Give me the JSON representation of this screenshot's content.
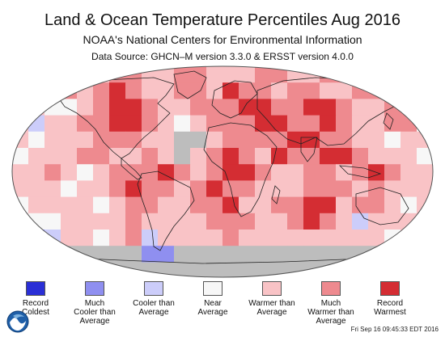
{
  "header": {
    "title": "Land & Ocean Temperature Percentiles Aug 2016",
    "subtitle": "NOAA's National Centers for Environmental Information",
    "source": "Data Source: GHCN–M version 3.3.0 & ERSST version 4.0.0"
  },
  "legend": [
    {
      "label_line1": "Record",
      "label_line2": "Coldest",
      "label_line3": "",
      "color": "#2a2fd6"
    },
    {
      "label_line1": "Much",
      "label_line2": "Cooler than",
      "label_line3": "Average",
      "color": "#8f8ff0"
    },
    {
      "label_line1": "Cooler than",
      "label_line2": "Average",
      "label_line3": "",
      "color": "#cccdfa"
    },
    {
      "label_line1": "Near",
      "label_line2": "Average",
      "label_line3": "",
      "color": "#f7f7f7"
    },
    {
      "label_line1": "Warmer than",
      "label_line2": "Average",
      "label_line3": "",
      "color": "#f9c3c6"
    },
    {
      "label_line1": "Much",
      "label_line2": "Warmer than",
      "label_line3": "Average",
      "color": "#ee8a8f"
    },
    {
      "label_line1": "Record",
      "label_line2": "Warmest",
      "label_line3": "",
      "color": "#d42d33"
    }
  ],
  "footer": {
    "logo_icon": "noaa-logo-icon",
    "timestamp": "Fri Sep 16 09:45:33 EDT 2016"
  },
  "colors": {
    "no_data": "#bdbdbd",
    "ocean_default": "#f4b9bd",
    "coastline": "#222222"
  }
}
